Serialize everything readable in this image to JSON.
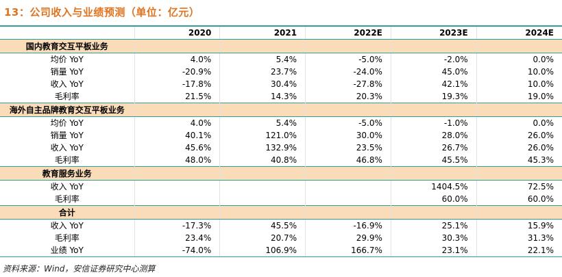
{
  "title": "13：公司收入与业绩预测（单位：亿元）",
  "colors": {
    "accent_teal": "#2d9f98",
    "section_header_bg": "#fbdcb9",
    "title_orange": "#e2731e"
  },
  "table": {
    "label_column_header": "",
    "year_headers": [
      "2020",
      "2021",
      "2022E",
      "2023E",
      "2024E"
    ],
    "sections": [
      {
        "header": "国内教育交互平板业务",
        "rows": [
          {
            "label": "均价 YoY",
            "values": [
              "4.0%",
              "5.4%",
              "-5.0%",
              "-2.0%",
              "0.0%"
            ]
          },
          {
            "label": "销量 YoY",
            "values": [
              "-20.9%",
              "23.7%",
              "-24.0%",
              "45.0%",
              "10.0%"
            ]
          },
          {
            "label": "收入 YoY",
            "values": [
              "-17.8%",
              "30.4%",
              "-27.8%",
              "42.1%",
              "10.0%"
            ]
          },
          {
            "label": "毛利率",
            "values": [
              "21.5%",
              "14.3%",
              "20.3%",
              "19.3%",
              "19.0%"
            ]
          }
        ]
      },
      {
        "header": "海外自主品牌教育交互平板业务",
        "rows": [
          {
            "label": "均价 YoY",
            "values": [
              "4.0%",
              "5.4%",
              "-5.0%",
              "-1.0%",
              "0.0%"
            ]
          },
          {
            "label": "销量 YoY",
            "values": [
              "40.1%",
              "121.0%",
              "30.0%",
              "28.0%",
              "26.0%"
            ]
          },
          {
            "label": "收入 YoY",
            "values": [
              "45.6%",
              "132.9%",
              "23.5%",
              "26.7%",
              "26.0%"
            ]
          },
          {
            "label": "毛利率",
            "values": [
              "48.0%",
              "40.8%",
              "46.8%",
              "45.5%",
              "45.3%"
            ]
          }
        ]
      },
      {
        "header": "教育服务业务",
        "rows": [
          {
            "label": "收入 YoY",
            "values": [
              "",
              "",
              "",
              "1404.5%",
              "72.5%"
            ]
          },
          {
            "label": "毛利率",
            "values": [
              "",
              "",
              "",
              "60.0%",
              "60.0%"
            ]
          }
        ]
      },
      {
        "header": "合计",
        "rows": [
          {
            "label": "收入 YoY",
            "values": [
              "-17.3%",
              "45.5%",
              "-16.9%",
              "25.1%",
              "15.9%"
            ]
          },
          {
            "label": "毛利率",
            "values": [
              "23.4%",
              "20.7%",
              "29.9%",
              "30.3%",
              "31.3%"
            ]
          },
          {
            "label": "业绩 YoY",
            "values": [
              "-74.0%",
              "106.9%",
              "166.7%",
              "23.1%",
              "22.1%"
            ]
          }
        ]
      }
    ]
  },
  "footer": {
    "source": "资料来源：Wind，安信证券研究中心测算"
  }
}
